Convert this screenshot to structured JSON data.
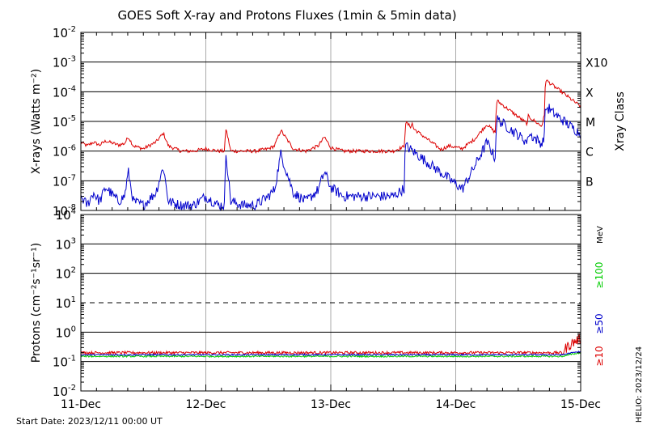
{
  "title": "GOES Soft X-ray and Protons Fluxes   (1min & 5min data)",
  "start_date": "Start Date: 2023/12/11 00:00 UT",
  "helio": "HELIO: 2023/12/24",
  "colors": {
    "red": "#dd0000",
    "green": "#00cc00",
    "blue": "#0000cc",
    "grid_gray": "#aaaaaa"
  },
  "chart_data": [
    {
      "type": "line",
      "name": "xray",
      "ylabel": "X-rays (Watts m⁻²)",
      "y_scale": "log",
      "ylim": [
        1e-08,
        0.01
      ],
      "y_ticks": [
        {
          "exp": -2,
          "base": "10",
          "sup": "-2"
        },
        {
          "exp": -3,
          "base": "10",
          "sup": "-3"
        },
        {
          "exp": -4,
          "base": "10",
          "sup": "-4"
        },
        {
          "exp": -5,
          "base": "10",
          "sup": "-5"
        },
        {
          "exp": -6,
          "base": "10",
          "sup": "-6"
        },
        {
          "exp": -7,
          "base": "10",
          "sup": "-7"
        },
        {
          "exp": -8,
          "base": "10",
          "sup": "-8"
        }
      ],
      "class_axis_label": "Xray Class",
      "classes": [
        {
          "label": "X10",
          "exp": -3
        },
        {
          "label": "X",
          "exp": -4
        },
        {
          "label": "M",
          "exp": -5
        },
        {
          "label": "C",
          "exp": -6
        },
        {
          "label": "B",
          "exp": -7
        }
      ],
      "x_unit": "days since 2023-12-11 00:00 UT",
      "series": [
        {
          "color": "red",
          "x": [
            0,
            0.05,
            0.1,
            0.15,
            0.2,
            0.3,
            0.35,
            0.38,
            0.42,
            0.5,
            0.6,
            0.66,
            0.7,
            0.8,
            0.9,
            1.0,
            1.1,
            1.15,
            1.16,
            1.2,
            1.3,
            1.4,
            1.5,
            1.55,
            1.6,
            1.7,
            1.8,
            1.9,
            1.95,
            2.0,
            2.1,
            2.2,
            2.3,
            2.4,
            2.5,
            2.6,
            2.65,
            2.68,
            2.75,
            2.85,
            2.95,
            3.05,
            3.15,
            3.25,
            3.35,
            3.45,
            3.48,
            3.55,
            3.65,
            3.75,
            3.85,
            4.0
          ],
          "y": [
            2e-06,
            1.5e-06,
            2e-06,
            1.6e-06,
            2.2e-06,
            1.6e-06,
            1.8e-06,
            3e-06,
            1.5e-06,
            1.2e-06,
            2e-06,
            4e-06,
            1.5e-06,
            1e-06,
            1e-06,
            1.2e-06,
            1e-06,
            1e-06,
            6e-06,
            1e-06,
            1e-06,
            1e-06,
            1.2e-06,
            1.5e-06,
            5e-06,
            1.2e-06,
            1e-06,
            1.5e-06,
            3e-06,
            1.3e-06,
            1e-06,
            1e-06,
            1e-06,
            1e-06,
            1e-06,
            1.5e-06,
            9e-06,
            3e-06,
            1.2e-06,
            1e-06,
            1.5e-06,
            1.2e-06,
            2.5e-06,
            8e-06,
            3e-06,
            1e-06,
            1.5e-06,
            1.2e-06,
            2e-06,
            6e-05,
            5e-06,
            2.5e-06
          ],
          "note": "approximate shape"
        },
        {
          "color": "blue",
          "x": [
            0,
            0.05,
            0.1,
            0.15,
            0.2,
            0.3,
            0.35,
            0.38,
            0.42,
            0.5,
            0.6,
            0.66,
            0.7,
            0.8,
            0.9,
            1.0,
            1.1,
            1.15,
            1.16,
            1.2,
            1.3,
            1.4,
            1.5,
            1.55,
            1.6,
            1.7,
            1.8,
            1.9,
            1.95,
            2.0,
            2.1,
            2.2,
            2.3,
            2.4,
            2.5,
            2.6,
            2.65,
            2.68,
            2.75,
            2.85,
            2.95,
            3.05,
            3.15,
            3.25,
            3.35,
            3.45,
            3.48,
            3.55,
            3.65,
            3.75,
            3.85,
            4.0
          ],
          "y": [
            3e-08,
            1.5e-08,
            4e-08,
            2e-08,
            6e-08,
            2e-08,
            3e-08,
            2e-07,
            2e-08,
            1.5e-08,
            4e-08,
            3e-07,
            2e-08,
            1.5e-08,
            1.5e-08,
            3e-08,
            1.5e-08,
            1.5e-08,
            1e-06,
            2e-08,
            1.5e-08,
            1.5e-08,
            3e-08,
            5e-08,
            8e-07,
            4e-08,
            2e-08,
            5e-08,
            2e-07,
            6e-08,
            3e-08,
            3e-08,
            3e-08,
            3e-08,
            3e-08,
            6e-08,
            8e-07,
            2e-07,
            5e-08,
            3e-08,
            6e-08,
            5e-08,
            3e-07,
            2e-06,
            3e-07,
            6e-08,
            1e-07,
            8e-08,
            2e-07,
            3e-05,
            3e-07,
            2e-07
          ]
        }
      ],
      "peaks": [
        {
          "x": 3.33,
          "red": 5e-05,
          "blue": 1.2e-05
        },
        {
          "x": 3.58,
          "red": 1.5e-05,
          "blue": 4e-06
        },
        {
          "x": 3.72,
          "red": 0.00025,
          "blue": 3e-05
        },
        {
          "x": 2.6,
          "red": 9e-06,
          "blue": 1.5e-06
        }
      ]
    },
    {
      "type": "line",
      "name": "protons",
      "ylabel": "Protons (cm⁻²s⁻¹sr⁻¹)",
      "y_scale": "log",
      "ylim": [
        0.01,
        10000
      ],
      "y_ticks": [
        {
          "exp": 4,
          "base": "10",
          "sup": "4"
        },
        {
          "exp": 3,
          "base": "10",
          "sup": "3"
        },
        {
          "exp": 2,
          "base": "10",
          "sup": "2"
        },
        {
          "exp": 1,
          "base": "10",
          "sup": "1"
        },
        {
          "exp": 0,
          "base": "10",
          "sup": "0"
        },
        {
          "exp": -1,
          "base": "10",
          "sup": "-1"
        },
        {
          "exp": -2,
          "base": "10",
          "sup": "-2"
        }
      ],
      "threshold_line": 10,
      "energy_unit": "MeV",
      "energy_labels": [
        {
          "label": "≥100",
          "color": "green"
        },
        {
          "label": "≥50",
          "color": "blue"
        },
        {
          "label": "≥10",
          "color": "red"
        }
      ],
      "series": [
        {
          "name": "≥10 MeV",
          "color": "red",
          "baseline": 0.2,
          "end_value": 0.6
        },
        {
          "name": "≥50 MeV",
          "color": "blue",
          "baseline": 0.17,
          "end_value": 0.22
        },
        {
          "name": "≥100 MeV",
          "color": "green",
          "baseline": 0.15,
          "end_value": 0.2
        }
      ]
    }
  ],
  "x_axis": {
    "tick_labels": [
      "11-Dec",
      "12-Dec",
      "13-Dec",
      "14-Dec",
      "15-Dec"
    ],
    "range_days": [
      0,
      4
    ]
  }
}
